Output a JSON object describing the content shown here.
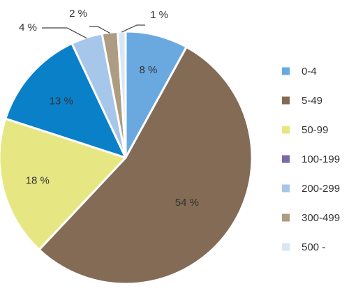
{
  "chart_data": {
    "type": "pie",
    "title": "",
    "categories": [
      "0-4",
      "5-49",
      "50-99",
      "100-199",
      "200-299",
      "300-499",
      "500 -"
    ],
    "values": [
      8,
      54,
      18,
      13,
      4,
      2,
      1
    ],
    "slice_labels": [
      "8 %",
      "54 %",
      "18 %",
      "13 %",
      "4 %",
      "2 %",
      "1 %"
    ],
    "slice_colors": [
      "#6aa9e0",
      "#836b56",
      "#e6e782",
      "#0a80c8",
      "#a6c6ea",
      "#ad9c82",
      "#d8e6f4"
    ],
    "legend": {
      "position": "right",
      "entries": [
        {
          "label": "0-4",
          "color": "#6aa9e0"
        },
        {
          "label": "5-49",
          "color": "#836b56"
        },
        {
          "label": "50-99",
          "color": "#e6e782"
        },
        {
          "label": "100-199",
          "color": "#7b68a6"
        },
        {
          "label": "200-299",
          "color": "#a6c6ea"
        },
        {
          "label": "300-499",
          "color": "#ad9c82"
        },
        {
          "label": "500 -",
          "color": "#d8e6f4"
        }
      ]
    }
  }
}
